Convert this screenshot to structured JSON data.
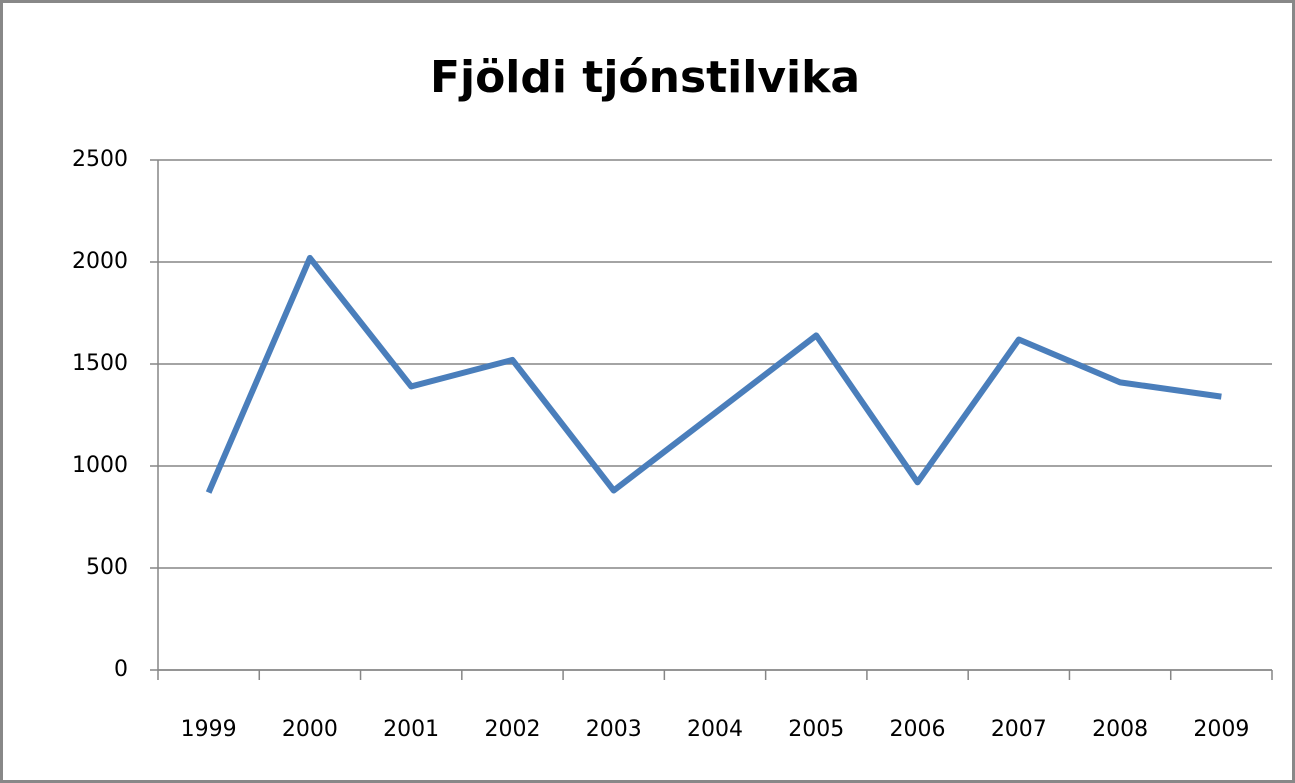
{
  "chart_data": {
    "type": "line",
    "title": "Fjöldi tjónstilvika",
    "categories": [
      "1999",
      "2000",
      "2001",
      "2002",
      "2003",
      "2004",
      "2005",
      "2006",
      "2007",
      "2008",
      "2009"
    ],
    "series": [
      {
        "name": "Fjöldi tjónstilvika",
        "color": "#4a7ebb",
        "values": [
          870,
          2020,
          1390,
          1520,
          880,
          1260,
          1640,
          920,
          1620,
          1410,
          1340
        ]
      }
    ],
    "ylim": [
      0,
      2500
    ],
    "yticks": [
      0,
      500,
      1000,
      1500,
      2000,
      2500
    ],
    "grid": true,
    "legend": false
  }
}
